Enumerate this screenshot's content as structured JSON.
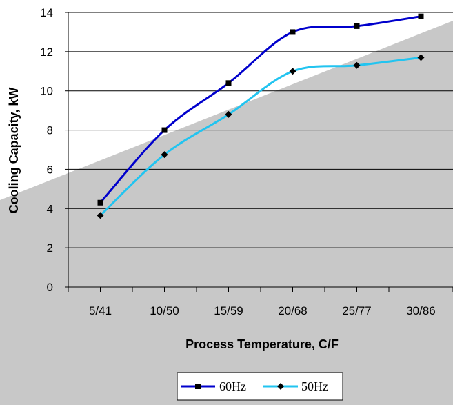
{
  "chart_data": {
    "type": "line",
    "categories": [
      "5/41",
      "10/50",
      "15/59",
      "20/68",
      "25/77",
      "30/86"
    ],
    "series": [
      {
        "name": "60Hz",
        "values": [
          4.3,
          8.0,
          10.4,
          13.0,
          13.3,
          13.8
        ],
        "color": "#0000cc",
        "marker": "square"
      },
      {
        "name": "50Hz",
        "values": [
          3.65,
          6.75,
          8.8,
          11.0,
          11.3,
          11.7
        ],
        "color": "#22c4f0",
        "marker": "diamond"
      }
    ],
    "xlabel": "Process Temperature, C/F",
    "ylabel": "Cooling Capacity, kW",
    "ylim": [
      0,
      14
    ],
    "yticks": [
      0,
      2,
      4,
      6,
      8,
      10,
      12,
      14
    ],
    "grid": true,
    "legend": "bottom",
    "colors": {
      "gridline": "#000000",
      "watermark": "#c8c8c8",
      "axis": "#000000",
      "marker": "#000000"
    }
  }
}
